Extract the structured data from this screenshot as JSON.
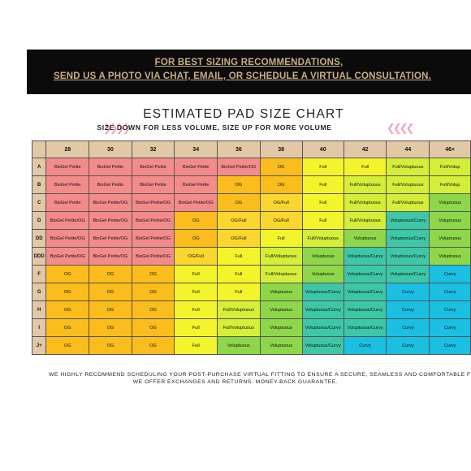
{
  "banner": {
    "line1": "FOR BEST SIZING RECOMMENDATIONS,",
    "line2": "SEND US A PHOTO VIA CHAT, EMAIL, OR SCHEDULE A VIRTUAL CONSULTATION."
  },
  "title": "ESTIMATED PAD SIZE CHART",
  "subtitle": "SIZE DOWN FOR LESS VOLUME, SIZE UP FOR MORE VOLUME",
  "arrows": {
    "left": "❯❯❯❯",
    "right": "❮❮❮❮"
  },
  "footer": {
    "line1": "WE HIGHLY RECOMMEND SCHEDULING YOUR POST-PURCHASE VIRTUAL FITTING TO ENSURE A SECURE, SEAMLESS AND COMFORTABLE FI",
    "line2": "WE OFFER EXCHANGES AND RETURNS. MONEY-BACK GUARANTEE."
  },
  "colors": {
    "BioGel Petite": "#f48b8b",
    "BioGel Petite/OG": "#f48b8b",
    "OG": "#fbbd1d",
    "OG/Full": "#fbd62e",
    "Full": "#f3f42b",
    "Full/Voluptuous": "#d4ee39",
    "Voluptuous": "#8ed64a",
    "Voluptuous/Curvy": "#3ec7a6",
    "Curvy": "#1bbfe2",
    "header": "#e2c8a6",
    "banner_text": "#c9ad86"
  },
  "table": {
    "columns": [
      "",
      "28",
      "30",
      "32",
      "34",
      "36",
      "38",
      "40",
      "42",
      "44",
      "46+"
    ],
    "rows": [
      {
        "cup": "A",
        "cells": [
          "BioGel Petite",
          "BioGel Petite",
          "BioGel Petite",
          "BioGel Petite",
          "BioGel Petite/OG",
          "OG",
          "Full",
          "Full",
          "Full/Voluptuous",
          "Full/Volup"
        ]
      },
      {
        "cup": "B",
        "cells": [
          "BioGel Petite",
          "BioGel Petite",
          "BioGel Petite",
          "BioGel Petite",
          "OG",
          "OG",
          "Full",
          "Full/Voluptuous",
          "Full/Voluptuous",
          "Full/Volup"
        ]
      },
      {
        "cup": "C",
        "cells": [
          "BioGel Petite",
          "BioGel Petite/OG",
          "BioGel Petite/OG",
          "BioGel Petite/OG",
          "OG",
          "OG/Full",
          "Full",
          "Full/Voluptuous",
          "Full/Voluptuous",
          "Voluptuous"
        ]
      },
      {
        "cup": "D",
        "cells": [
          "BioGel Petite/OG",
          "BioGel Petite/OG",
          "BioGel Petite/OG",
          "OG",
          "OG/Full",
          "OG/Full",
          "Full",
          "Full/Voluptuous",
          "Voluptuous/Curvy",
          "Voluptuous"
        ]
      },
      {
        "cup": "DD",
        "cells": [
          "BioGel Petite/OG",
          "BioGel Petite/OG",
          "BioGel Petite/OG",
          "OG",
          "OG/Full",
          "Full",
          "Full/Voluptuous",
          "Voluptuous",
          "Voluptuous/Curvy",
          "Voluptuous"
        ]
      },
      {
        "cup": "DDD",
        "cells": [
          "BioGel Petite/OG",
          "BioGel Petite/OG",
          "BioGel Petite/OG",
          "OG/Full",
          "Full",
          "Full/Voluptuous",
          "Voluptuous",
          "Voluptuous/Curvy",
          "Voluptuous/Curvy",
          "Voluptuous"
        ]
      },
      {
        "cup": "F",
        "cells": [
          "OG",
          "OG",
          "OG",
          "Full",
          "Full",
          "Full/Voluptuous",
          "Voluptuous",
          "Voluptuous/Curvy",
          "Voluptuous/Curvy",
          "Curvy"
        ]
      },
      {
        "cup": "G",
        "cells": [
          "OG",
          "OG",
          "OG",
          "Full",
          "Full",
          "Voluptuous",
          "Voluptuous/Curvy",
          "Voluptuous/Curvy",
          "Curvy",
          "Curvy"
        ]
      },
      {
        "cup": "H",
        "cells": [
          "OG",
          "OG",
          "OG",
          "Full",
          "Full/Voluptuous",
          "Voluptuous",
          "Voluptuous/Curvy",
          "Voluptuous/Curvy",
          "Curvy",
          "Curvy"
        ]
      },
      {
        "cup": "I",
        "cells": [
          "OG",
          "OG",
          "OG",
          "Full",
          "Full/Voluptuous",
          "Voluptuous",
          "Voluptuous/Curvy",
          "Voluptuous/Curvy",
          "Curvy",
          "Curvy"
        ]
      },
      {
        "cup": "J+",
        "cells": [
          "OG",
          "OG",
          "OG",
          "Full",
          "Voluptuous",
          "Voluptuous",
          "Voluptuous/Curvy",
          "Curvy",
          "Curvy",
          "Curvy"
        ]
      }
    ]
  }
}
